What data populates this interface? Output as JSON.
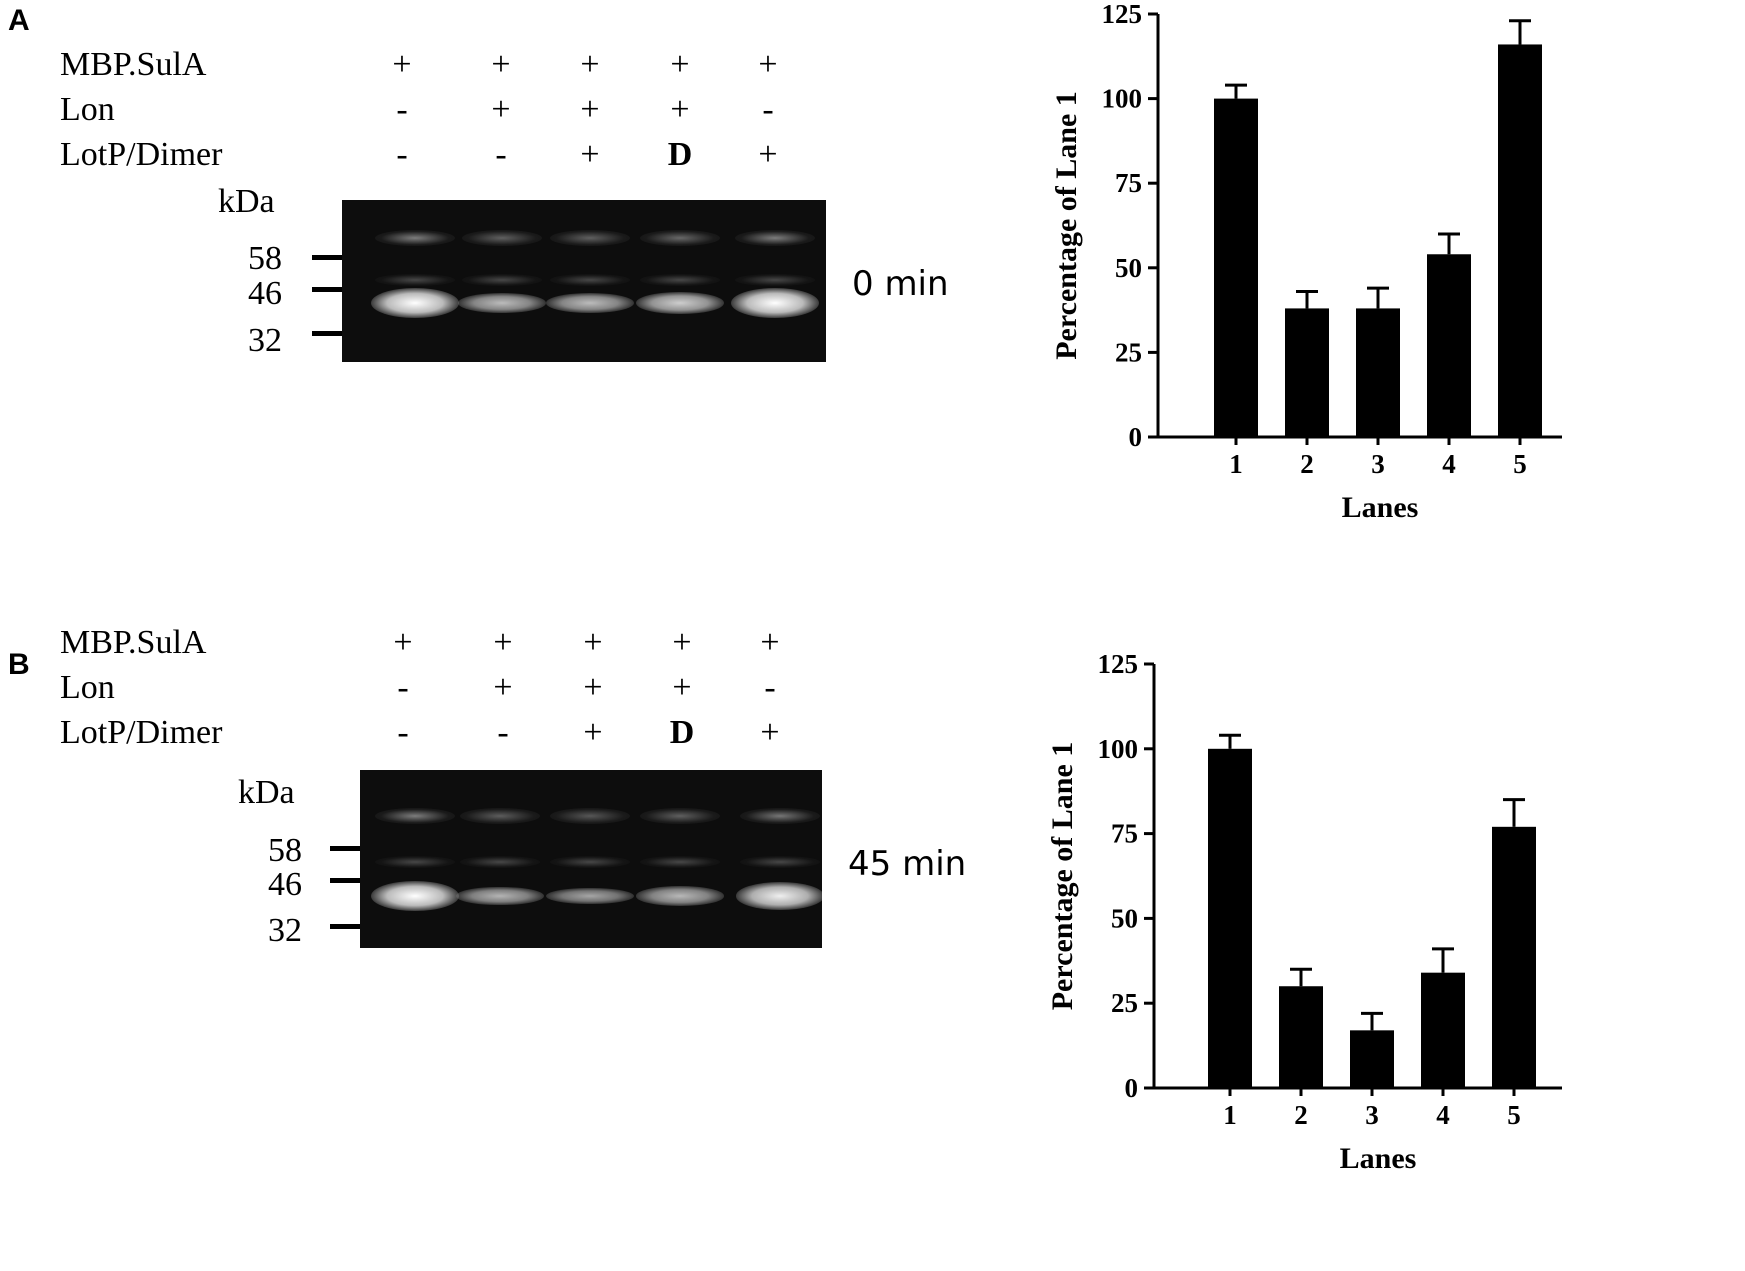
{
  "panels": [
    {
      "letter": "A",
      "conditions": [
        {
          "label": "MBP.SulA",
          "values": [
            "+",
            "+",
            "+",
            "+",
            "+"
          ]
        },
        {
          "label": "Lon",
          "values": [
            "-",
            "+",
            "+",
            "+",
            "-"
          ]
        },
        {
          "label": "LotP/Dimer",
          "values": [
            "-",
            "-",
            "+",
            "D",
            "+"
          ]
        }
      ],
      "gel": {
        "kda_label": "kDa",
        "markers": [
          "58",
          "46",
          "32"
        ],
        "time_label": "0 min",
        "main_band_intensity": [
          1.0,
          0.38,
          0.38,
          0.55,
          1.0
        ]
      }
    },
    {
      "letter": "B",
      "conditions": [
        {
          "label": "MBP.SulA",
          "values": [
            "+",
            "+",
            "+",
            "+",
            "+"
          ]
        },
        {
          "label": "Lon",
          "values": [
            "-",
            "+",
            "+",
            "+",
            "-"
          ]
        },
        {
          "label": "LotP/Dimer",
          "values": [
            "-",
            "-",
            "+",
            "D",
            "+"
          ]
        }
      ],
      "gel": {
        "kda_label": "kDa",
        "markers": [
          "58",
          "46",
          "32"
        ],
        "time_label": "45 min",
        "main_band_intensity": [
          1.0,
          0.31,
          0.18,
          0.35,
          0.85
        ]
      }
    }
  ],
  "chart_data": [
    {
      "type": "bar",
      "panel": "A",
      "categories": [
        "1",
        "2",
        "3",
        "4",
        "5"
      ],
      "values": [
        100,
        38,
        38,
        54,
        116
      ],
      "errors": [
        4,
        5,
        6,
        6,
        7
      ],
      "xlabel": "Lanes",
      "ylabel": "Percentage of Lane 1",
      "ylim": [
        0,
        125
      ],
      "yticks": [
        0,
        25,
        50,
        75,
        100,
        125
      ],
      "grid": false,
      "bar_color": "#000000"
    },
    {
      "type": "bar",
      "panel": "B",
      "categories": [
        "1",
        "2",
        "3",
        "4",
        "5"
      ],
      "values": [
        100,
        30,
        17,
        34,
        77
      ],
      "errors": [
        4,
        5,
        5,
        7,
        8
      ],
      "xlabel": "Lanes",
      "ylabel": "Percentage of Lane 1",
      "ylim": [
        0,
        125
      ],
      "yticks": [
        0,
        25,
        50,
        75,
        100,
        125
      ],
      "grid": false,
      "bar_color": "#000000"
    }
  ]
}
